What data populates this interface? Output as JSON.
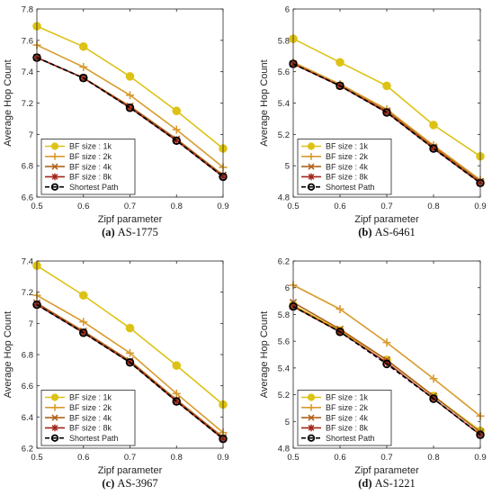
{
  "chart_data": [
    {
      "type": "line",
      "panel": "a",
      "caption_label": "(a)",
      "caption_text": "AS-1775",
      "xlabel": "Zipf parameter",
      "ylabel": "Average Hop Count",
      "x": [
        0.5,
        0.6,
        0.7,
        0.8,
        0.9
      ],
      "xlim": [
        0.5,
        0.9
      ],
      "ylim": [
        6.6,
        7.8
      ],
      "xticks": [
        "0.5",
        "0.6",
        "0.7",
        "0.8",
        "0.9"
      ],
      "yticks": [
        "6.6",
        "6.8",
        "7",
        "7.2",
        "7.4",
        "7.6",
        "7.8"
      ],
      "legend_position": "lower-left",
      "series": [
        {
          "name": "BF size : 1k",
          "values": [
            7.69,
            7.56,
            7.37,
            7.15,
            6.91
          ]
        },
        {
          "name": "BF size : 2k",
          "values": [
            7.57,
            7.43,
            7.25,
            7.03,
            6.79
          ]
        },
        {
          "name": "BF size : 4k",
          "values": [
            7.49,
            7.36,
            7.18,
            6.97,
            6.74
          ]
        },
        {
          "name": "BF size : 8k",
          "values": [
            7.49,
            7.36,
            7.17,
            6.96,
            6.73
          ]
        },
        {
          "name": "Shortest Path",
          "values": [
            7.49,
            7.36,
            7.17,
            6.96,
            6.73
          ]
        }
      ]
    },
    {
      "type": "line",
      "panel": "b",
      "caption_label": "(b)",
      "caption_text": "AS-6461",
      "xlabel": "Zipf parameter",
      "ylabel": "Average Hop Count",
      "x": [
        0.5,
        0.6,
        0.7,
        0.8,
        0.9
      ],
      "xlim": [
        0.5,
        0.9
      ],
      "ylim": [
        4.8,
        6.0
      ],
      "xticks": [
        "0.5",
        "0.6",
        "0.7",
        "0.8",
        "0.9"
      ],
      "yticks": [
        "4.8",
        "5",
        "5.2",
        "5.4",
        "5.6",
        "5.8",
        "6"
      ],
      "legend_position": "lower-left",
      "series": [
        {
          "name": "BF size : 1k",
          "values": [
            5.81,
            5.66,
            5.51,
            5.26,
            5.06
          ]
        },
        {
          "name": "BF size : 2k",
          "values": [
            5.66,
            5.52,
            5.36,
            5.13,
            4.91
          ]
        },
        {
          "name": "BF size : 4k",
          "values": [
            5.65,
            5.51,
            5.35,
            5.12,
            4.9
          ]
        },
        {
          "name": "BF size : 8k",
          "values": [
            5.65,
            5.51,
            5.34,
            5.11,
            4.89
          ]
        },
        {
          "name": "Shortest Path",
          "values": [
            5.65,
            5.51,
            5.34,
            5.11,
            4.89
          ]
        }
      ]
    },
    {
      "type": "line",
      "panel": "c",
      "caption_label": "(c)",
      "caption_text": "AS-3967",
      "xlabel": "Zipf parameter",
      "ylabel": "Average Hop Count",
      "x": [
        0.5,
        0.6,
        0.7,
        0.8,
        0.9
      ],
      "xlim": [
        0.5,
        0.9
      ],
      "ylim": [
        6.2,
        7.4
      ],
      "xticks": [
        "0.5",
        "0.6",
        "0.7",
        "0.8",
        "0.9"
      ],
      "yticks": [
        "6.2",
        "6.4",
        "6.6",
        "6.8",
        "7",
        "7.2",
        "7.4"
      ],
      "legend_position": "lower-left",
      "series": [
        {
          "name": "BF size : 1k",
          "values": [
            7.37,
            7.18,
            6.97,
            6.73,
            6.48
          ]
        },
        {
          "name": "BF size : 2k",
          "values": [
            7.18,
            7.01,
            6.81,
            6.55,
            6.3
          ]
        },
        {
          "name": "BF size : 4k",
          "values": [
            7.13,
            6.95,
            6.76,
            6.51,
            6.27
          ]
        },
        {
          "name": "BF size : 8k",
          "values": [
            7.12,
            6.94,
            6.75,
            6.5,
            6.26
          ]
        },
        {
          "name": "Shortest Path",
          "values": [
            7.12,
            6.94,
            6.75,
            6.5,
            6.26
          ]
        }
      ]
    },
    {
      "type": "line",
      "panel": "d",
      "caption_label": "(d)",
      "caption_text": "AS-1221",
      "xlabel": "Zipf parameter",
      "ylabel": "Average Hop Count",
      "x": [
        0.5,
        0.6,
        0.7,
        0.8,
        0.9
      ],
      "xlim": [
        0.5,
        0.9
      ],
      "ylim": [
        4.8,
        6.2
      ],
      "xticks": [
        "0.5",
        "0.6",
        "0.7",
        "0.8",
        "0.9"
      ],
      "yticks": [
        "4.8",
        "5",
        "5.2",
        "5.4",
        "5.6",
        "5.8",
        "6",
        "6.2"
      ],
      "legend_position": "lower-left",
      "series": [
        {
          "name": "BF size : 1k",
          "values": [
            5.87,
            5.68,
            5.46,
            5.19,
            4.93
          ]
        },
        {
          "name": "BF size : 2k",
          "values": [
            6.02,
            5.84,
            5.59,
            5.32,
            5.04
          ]
        },
        {
          "name": "BF size : 4k",
          "values": [
            5.89,
            5.69,
            5.46,
            5.19,
            4.92
          ]
        },
        {
          "name": "BF size : 8k",
          "values": [
            5.86,
            5.67,
            5.44,
            5.17,
            4.9
          ]
        },
        {
          "name": "Shortest Path",
          "values": [
            5.86,
            5.67,
            5.43,
            5.17,
            4.9
          ]
        }
      ]
    }
  ],
  "series_styles": [
    {
      "color": "#DDC215",
      "marker": "circle-filled",
      "line": "solid"
    },
    {
      "color": "#D99A2B",
      "marker": "plus",
      "line": "solid"
    },
    {
      "color": "#B0621A",
      "marker": "x",
      "line": "solid"
    },
    {
      "color": "#A2251A",
      "marker": "asterisk",
      "line": "solid"
    },
    {
      "color": "#000000",
      "marker": "circle-open",
      "line": "dashed"
    }
  ]
}
